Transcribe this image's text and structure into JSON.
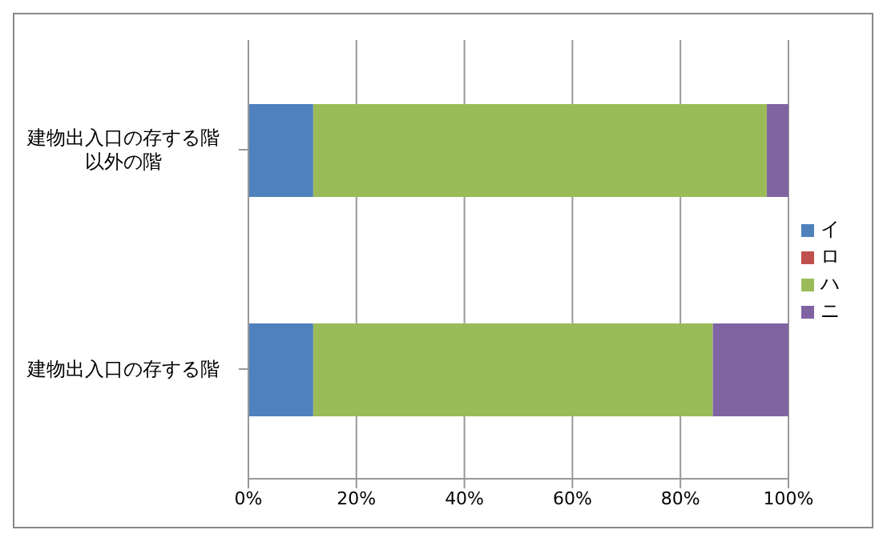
{
  "chart_data": {
    "type": "bar",
    "orientation": "horizontal",
    "stacked": true,
    "categories": [
      "建物出入口の存する階以外の階",
      "建物出入口の存する階"
    ],
    "series": [
      {
        "name": "イ",
        "color": "#4f81bd",
        "values": [
          12,
          12
        ]
      },
      {
        "name": "ロ",
        "color": "#c0504d",
        "values": [
          0,
          0
        ]
      },
      {
        "name": "ハ",
        "color": "#9bbb59",
        "values": [
          84,
          74
        ]
      },
      {
        "name": "ニ",
        "color": "#8064a2",
        "values": [
          4,
          14
        ]
      }
    ],
    "xlim": [
      0,
      100
    ],
    "xticks": [
      {
        "value": 0,
        "label": "0%"
      },
      {
        "value": 20,
        "label": "20%"
      },
      {
        "value": 40,
        "label": "40%"
      },
      {
        "value": 60,
        "label": "60%"
      },
      {
        "value": 80,
        "label": "80%"
      },
      {
        "value": 100,
        "label": "100%"
      }
    ],
    "grid": "x",
    "legend": "right"
  }
}
